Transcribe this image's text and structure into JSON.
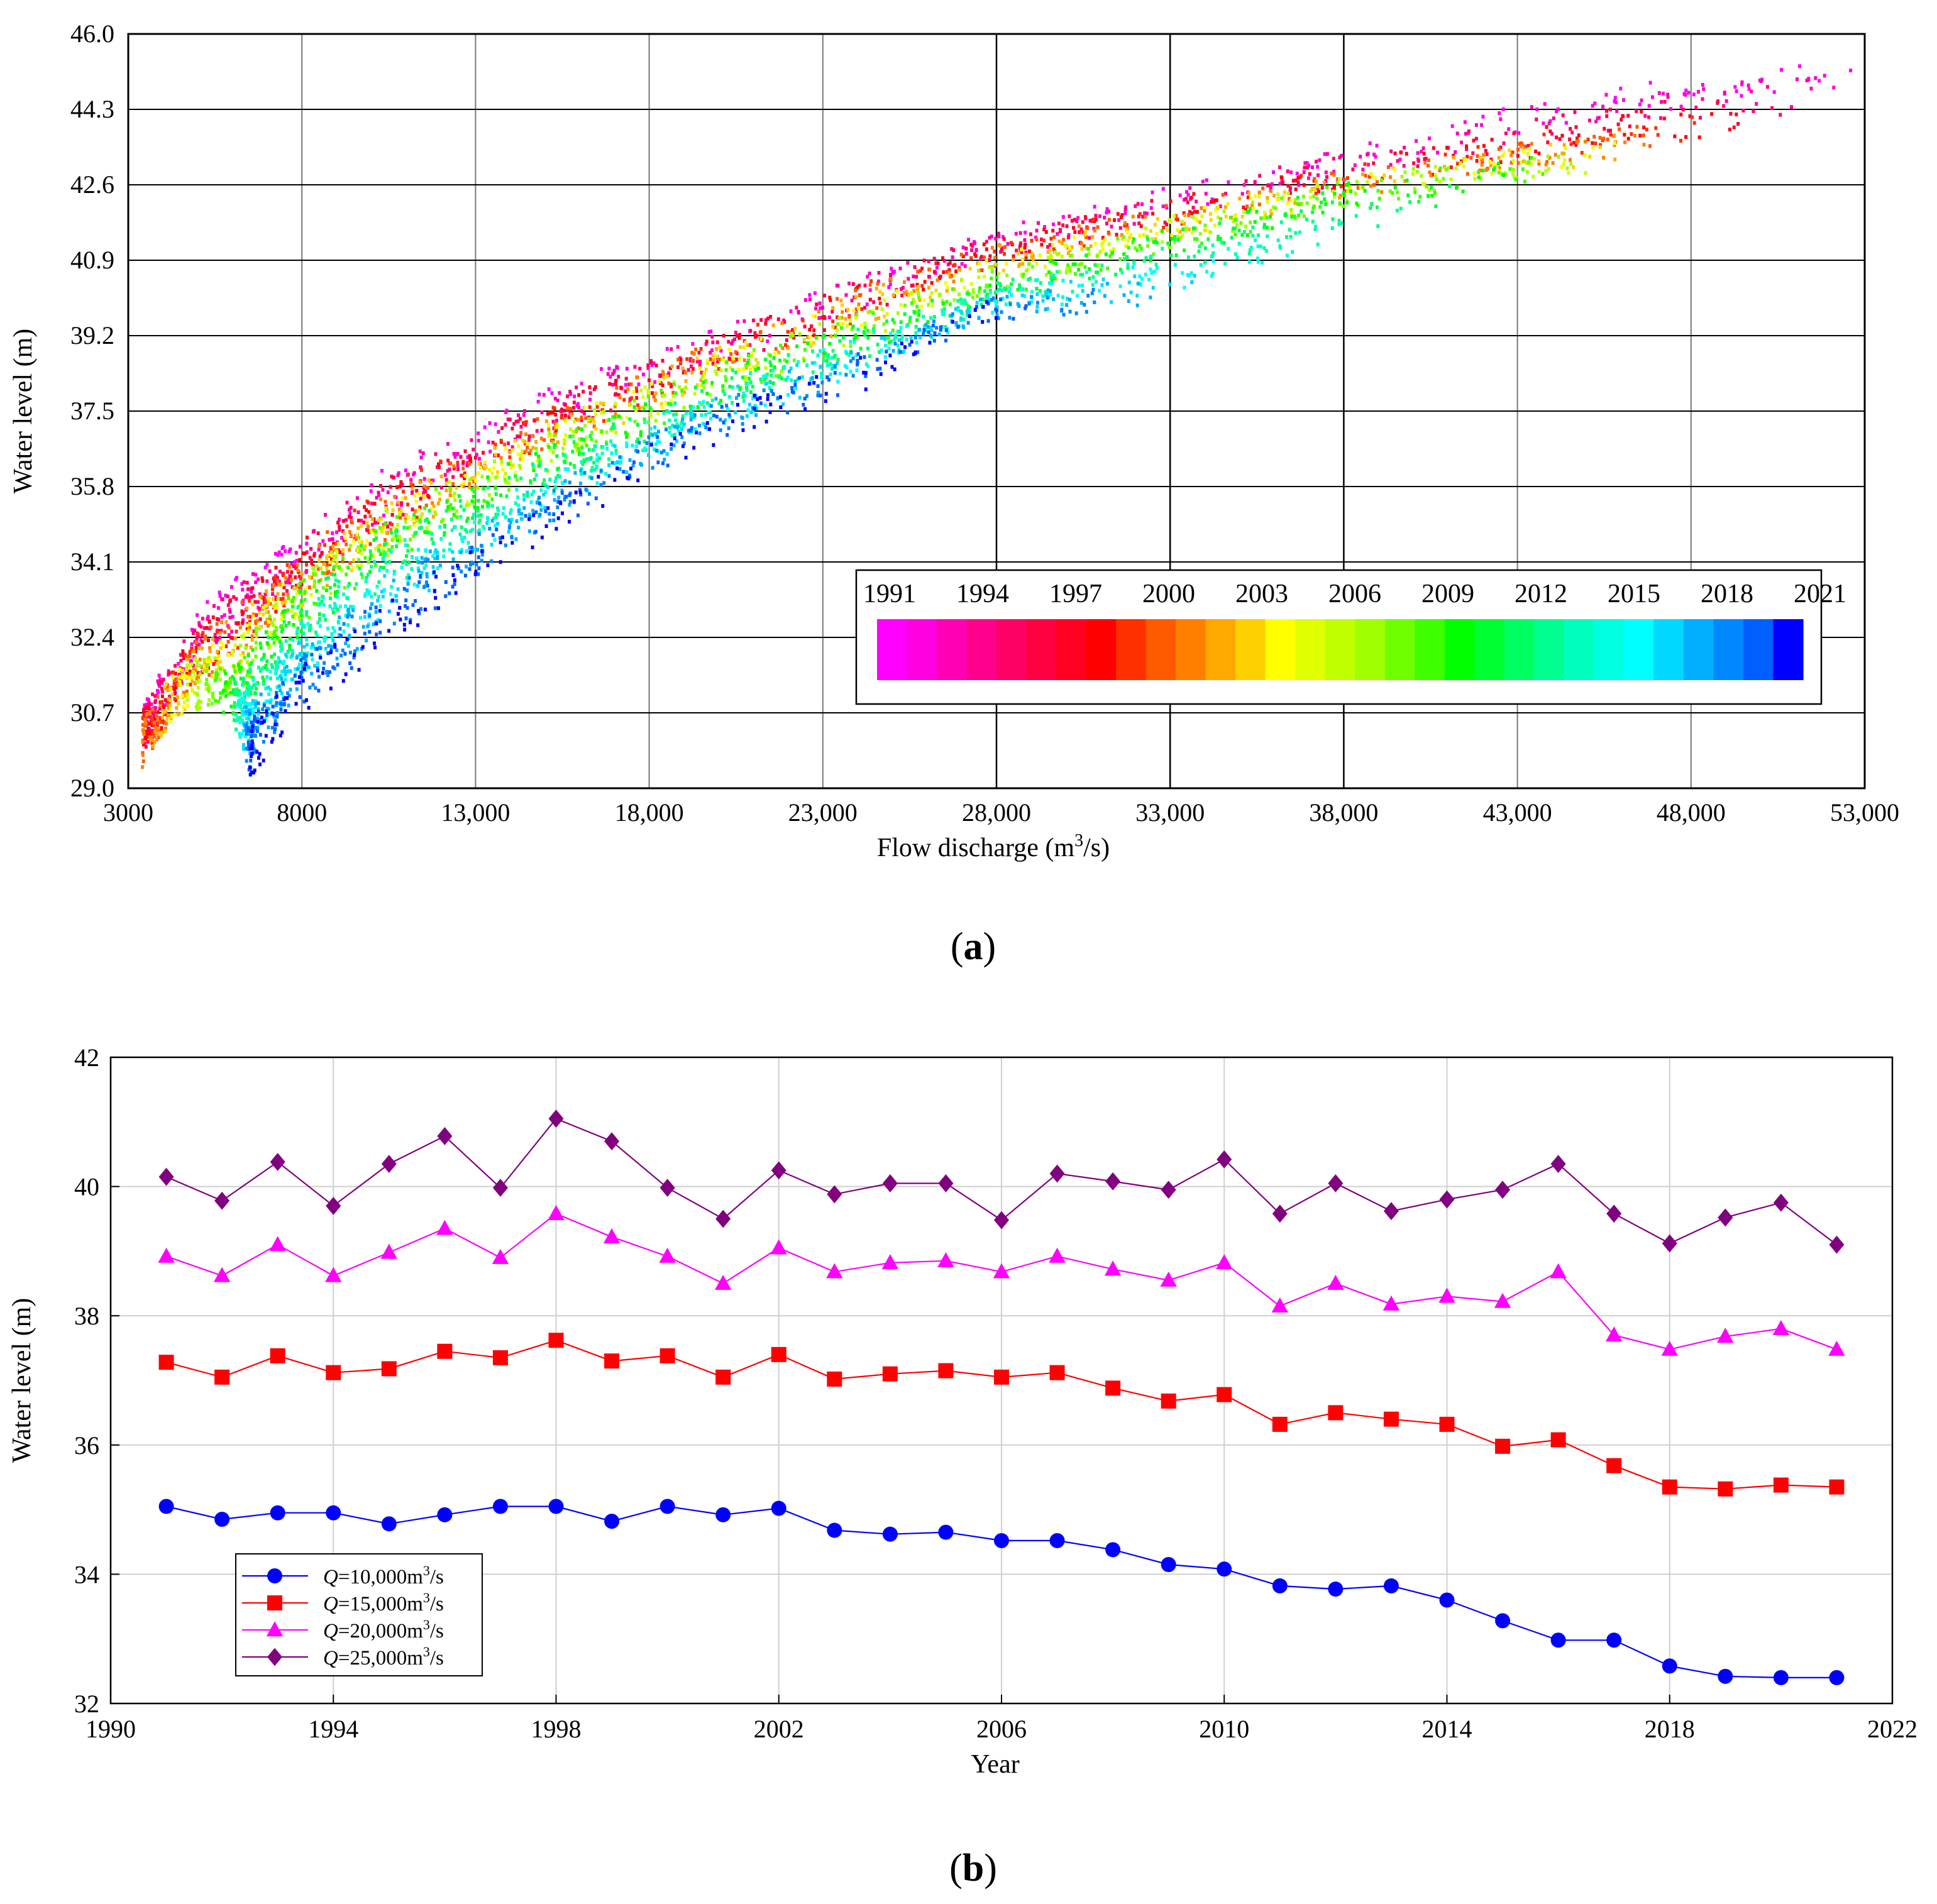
{
  "chart_data": [
    {
      "type": "scatter",
      "panel_label": "a",
      "title": "",
      "xlabel": "Flow discharge (m",
      "xlabel_sup": "3",
      "xlabel_tail": "/s)",
      "ylabel": "Water level (m)",
      "xlim": [
        3000,
        53000
      ],
      "ylim": [
        29.0,
        46.0
      ],
      "x_ticks": [
        3000,
        8000,
        13000,
        18000,
        23000,
        28000,
        33000,
        38000,
        43000,
        48000,
        53000
      ],
      "x_tick_labels": [
        "3000",
        "8000",
        "13,000",
        "18,000",
        "23,000",
        "28,000",
        "33,000",
        "38,000",
        "43,000",
        "48,000",
        "53,000"
      ],
      "y_ticks": [
        29.0,
        30.7,
        32.4,
        34.1,
        35.8,
        37.5,
        39.2,
        40.9,
        42.6,
        44.3,
        46.0
      ],
      "y_tick_labels": [
        "29.0",
        "30.7",
        "32.4",
        "34.1",
        "35.8",
        "37.5",
        "39.2",
        "40.9",
        "42.6",
        "44.3",
        "46.0"
      ],
      "grid": true,
      "color_by": "year",
      "colorbar": {
        "placement": "lower-right inset",
        "year_range": [
          1991,
          2021
        ],
        "tick_labels": [
          "1991",
          "1994",
          "1997",
          "2000",
          "2003",
          "2006",
          "2009",
          "2012",
          "2015",
          "2018",
          "2021"
        ],
        "colors": [
          "#ff00ff",
          "#ff00e0",
          "#ff00b4",
          "#ff008c",
          "#ff0064",
          "#ff0040",
          "#ff0020",
          "#ff0000",
          "#ff3000",
          "#ff5a00",
          "#ff8000",
          "#ffa800",
          "#ffd000",
          "#ffff00",
          "#e0ff00",
          "#c0ff00",
          "#a0ff00",
          "#70ff00",
          "#40ff00",
          "#00ff00",
          "#00ff30",
          "#00ff60",
          "#00ff90",
          "#00ffbf",
          "#00ffe0",
          "#00ffff",
          "#00d8ff",
          "#00b0ff",
          "#0088ff",
          "#0060ff",
          "#0000ff"
        ]
      },
      "relationship_description": "",
      "sample_points": [
        {
          "year": 1991,
          "points": [
            [
              3500,
              30.5
            ],
            [
              5000,
              32.5
            ],
            [
              8000,
              34.4
            ],
            [
              11000,
              36.0
            ],
            [
              15000,
              37.6
            ],
            [
              20000,
              39.0
            ],
            [
              28000,
              41.4
            ],
            [
              38000,
              43.2
            ],
            [
              46000,
              44.6
            ],
            [
              53000,
              45.2
            ]
          ]
        },
        {
          "year": 2001,
          "points": [
            [
              3400,
              30.0
            ],
            [
              5000,
              31.8
            ],
            [
              8000,
              33.8
            ],
            [
              11000,
              35.4
            ],
            [
              15000,
              37.0
            ],
            [
              20000,
              38.7
            ],
            [
              28000,
              41.0
            ],
            [
              38000,
              42.6
            ],
            [
              44000,
              43.3
            ],
            [
              47000,
              43.6
            ]
          ]
        },
        {
          "year": 2011,
          "points": [
            [
              6000,
              31.0
            ],
            [
              8000,
              33.0
            ],
            [
              11000,
              34.6
            ],
            [
              15000,
              36.3
            ],
            [
              20000,
              38.0
            ],
            [
              28000,
              40.2
            ],
            [
              38000,
              42.3
            ],
            [
              43000,
              42.9
            ]
          ]
        },
        {
          "year": 2021,
          "points": [
            [
              6500,
              29.8
            ],
            [
              8000,
              31.2
            ],
            [
              11000,
              33.0
            ],
            [
              15000,
              35.0
            ],
            [
              20000,
              37.2
            ],
            [
              24000,
              38.3
            ],
            [
              28000,
              39.8
            ]
          ]
        }
      ]
    },
    {
      "type": "line",
      "panel_label": "b",
      "title": "",
      "xlabel": "Year",
      "ylabel": "Water level (m)",
      "xlim": [
        1990,
        2022
      ],
      "ylim": [
        32,
        42
      ],
      "x_ticks": [
        1990,
        1994,
        1998,
        2002,
        2006,
        2010,
        2014,
        2018,
        2022
      ],
      "x_tick_labels": [
        "1990",
        "1994",
        "1998",
        "2002",
        "2006",
        "2010",
        "2014",
        "2018",
        "2022"
      ],
      "y_ticks": [
        32,
        34,
        36,
        38,
        40,
        42
      ],
      "y_tick_labels": [
        "32",
        "34",
        "36",
        "38",
        "40",
        "42"
      ],
      "grid": true,
      "legend_placement": "lower-left",
      "x": [
        1991,
        1992,
        1993,
        1994,
        1995,
        1996,
        1997,
        1998,
        1999,
        2000,
        2001,
        2002,
        2003,
        2004,
        2005,
        2006,
        2007,
        2008,
        2009,
        2010,
        2011,
        2012,
        2013,
        2014,
        2015,
        2016,
        2017,
        2018,
        2019,
        2020,
        2021
      ],
      "series": [
        {
          "name_italic": "Q",
          "name_rest": "=10,000m",
          "name_sup": "3",
          "name_tail": "/s",
          "color": "#0000ff",
          "marker": "circle",
          "values": [
            35.05,
            34.85,
            34.95,
            34.95,
            34.78,
            34.92,
            35.05,
            35.05,
            34.82,
            35.05,
            34.92,
            35.02,
            34.68,
            34.62,
            34.65,
            34.52,
            34.52,
            34.38,
            34.15,
            34.08,
            33.82,
            33.77,
            33.82,
            33.6,
            33.28,
            32.98,
            32.98,
            32.58,
            32.42,
            32.4,
            32.4
          ]
        },
        {
          "name_italic": "Q",
          "name_rest": "=15,000m",
          "name_sup": "3",
          "name_tail": "/s",
          "color": "#ff0000",
          "marker": "square",
          "values": [
            37.28,
            37.05,
            37.38,
            37.12,
            37.18,
            37.45,
            37.35,
            37.62,
            37.3,
            37.38,
            37.05,
            37.4,
            37.02,
            37.1,
            37.15,
            37.05,
            37.12,
            36.88,
            36.68,
            36.78,
            36.32,
            36.5,
            36.4,
            36.32,
            35.98,
            36.08,
            35.68,
            35.35,
            35.32,
            35.38,
            35.35
          ]
        },
        {
          "name_italic": "Q",
          "name_rest": "=20,000m",
          "name_sup": "3",
          "name_tail": "/s",
          "color": "#ff00ff",
          "marker": "triangle",
          "values": [
            38.92,
            38.62,
            39.1,
            38.62,
            38.98,
            39.35,
            38.9,
            39.58,
            39.22,
            38.92,
            38.5,
            39.05,
            38.68,
            38.82,
            38.85,
            38.68,
            38.92,
            38.72,
            38.55,
            38.82,
            38.15,
            38.5,
            38.18,
            38.3,
            38.22,
            38.68,
            37.7,
            37.48,
            37.68,
            37.8,
            37.48
          ]
        },
        {
          "name_italic": "Q",
          "name_rest": "=25,000m",
          "name_sup": "3",
          "name_tail": "/s",
          "color": "#800080",
          "marker": "diamond",
          "values": [
            40.15,
            39.78,
            40.38,
            39.7,
            40.35,
            40.78,
            39.98,
            41.05,
            40.7,
            39.98,
            39.5,
            40.25,
            39.88,
            40.05,
            40.05,
            39.48,
            40.2,
            40.08,
            39.95,
            40.42,
            39.58,
            40.05,
            39.62,
            39.8,
            39.95,
            40.35,
            39.58,
            39.12,
            39.52,
            39.75,
            39.1
          ]
        }
      ]
    }
  ]
}
